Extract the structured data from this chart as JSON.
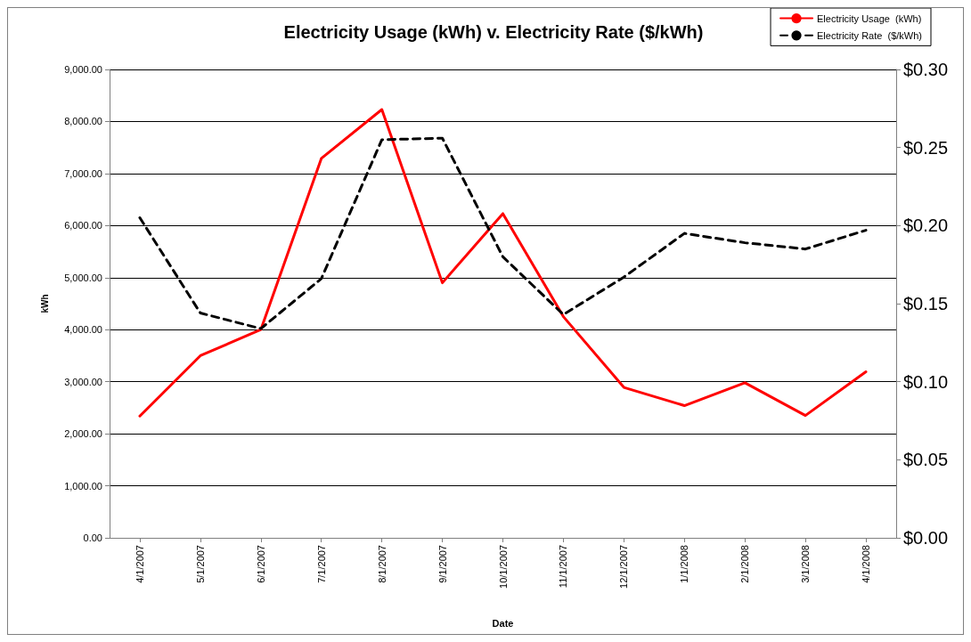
{
  "chart_data": {
    "type": "line",
    "title": "Electricity Usage (kWh) v. Electricity Rate ($/kWh)",
    "xlabel": "Date",
    "ylabel": "kWh",
    "categories": [
      "4/1/2007",
      "5/1/2007",
      "6/1/2007",
      "7/1/2007",
      "8/1/2007",
      "9/1/2007",
      "10/1/2007",
      "11/1/2007",
      "12/1/2007",
      "1/1/2008",
      "2/1/2008",
      "3/1/2008",
      "4/1/2008"
    ],
    "series": [
      {
        "name": "Electricity Usage  (kWh)",
        "color": "#ff0000",
        "line_style": "solid",
        "values": [
          2340,
          3500,
          4000,
          7290,
          8230,
          4900,
          6230,
          4250,
          2890,
          2540,
          2980,
          2350,
          3190
        ]
      },
      {
        "name": "Electricity Rate  ($/kWh)",
        "color": "#000000",
        "line_style": "dashed",
        "axis": "y2",
        "values": [
          0.205,
          0.144,
          0.134,
          0.166,
          0.255,
          0.256,
          0.18,
          0.143,
          0.167,
          0.195,
          0.189,
          0.185,
          0.197
        ]
      }
    ],
    "ylim": [
      0,
      9000
    ],
    "yticks": [
      {
        "value": 0,
        "label": "0.00"
      },
      {
        "value": 1000,
        "label": "1,000.00"
      },
      {
        "value": 2000,
        "label": "2,000.00"
      },
      {
        "value": 3000,
        "label": "3,000.00"
      },
      {
        "value": 4000,
        "label": "4,000.00"
      },
      {
        "value": 5000,
        "label": "5,000.00"
      },
      {
        "value": 6000,
        "label": "6,000.00"
      },
      {
        "value": 7000,
        "label": "7,000.00"
      },
      {
        "value": 8000,
        "label": "8,000.00"
      },
      {
        "value": 9000,
        "label": "9,000.00"
      }
    ],
    "y2lim": [
      0,
      0.3
    ],
    "y2ticks": [
      {
        "value": 0,
        "label": "$0.00"
      },
      {
        "value": 0.05,
        "label": "$0.05"
      },
      {
        "value": 0.1,
        "label": "$0.10"
      },
      {
        "value": 0.15,
        "label": "$0.15"
      },
      {
        "value": 0.2,
        "label": "$0.20"
      },
      {
        "value": 0.25,
        "label": "$0.25"
      },
      {
        "value": 0.3,
        "label": "$0.30"
      }
    ],
    "grid": "y",
    "legend": "top right",
    "marker": "none"
  }
}
